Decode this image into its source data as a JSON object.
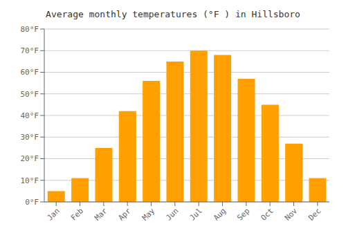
{
  "chart_data": {
    "type": "bar",
    "title": "Average monthly temperatures (°F ) in Hillsboro",
    "categories": [
      "Jan",
      "Feb",
      "Mar",
      "Apr",
      "May",
      "Jun",
      "Jul",
      "Aug",
      "Sep",
      "Oct",
      "Nov",
      "Dec"
    ],
    "values": [
      5,
      11,
      25,
      42,
      56,
      65,
      70,
      68,
      57,
      45,
      27,
      11
    ],
    "color": "#FFA000",
    "ylim": [
      0,
      80
    ],
    "yticks": [
      {
        "value": 0,
        "label": "0°F"
      },
      {
        "value": 10,
        "label": "10°F"
      },
      {
        "value": 20,
        "label": "20°F"
      },
      {
        "value": 30,
        "label": "30°F"
      },
      {
        "value": 40,
        "label": "40°F"
      },
      {
        "value": 50,
        "label": "50°F"
      },
      {
        "value": 60,
        "label": "60°F"
      },
      {
        "value": 70,
        "label": "70°F"
      },
      {
        "value": 80,
        "label": "80°F"
      }
    ],
    "grid": true
  }
}
